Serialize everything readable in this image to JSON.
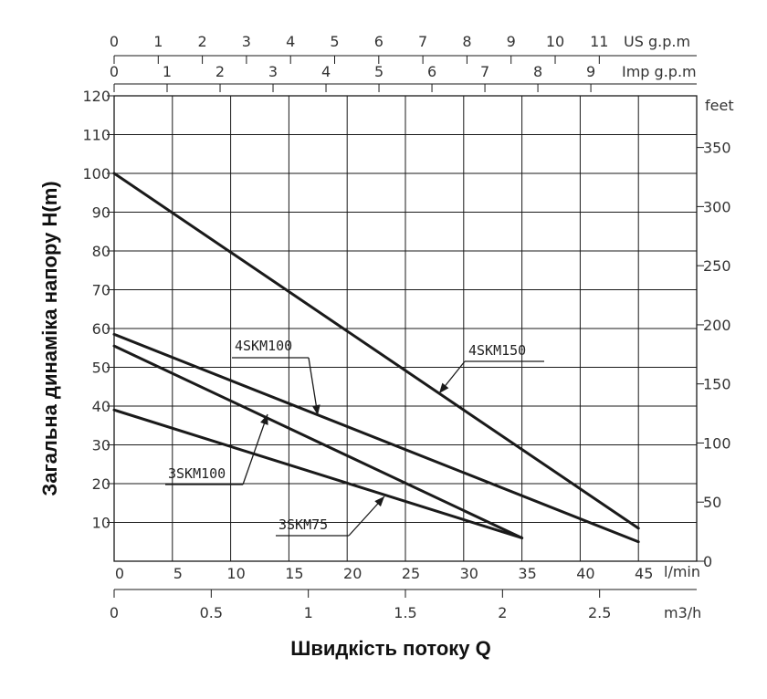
{
  "chart_data": {
    "type": "line",
    "x_label": "Швидкість потоку Q",
    "y_label": "Загальна динаміка напору H(m)",
    "x_lmin_unit": "l/min",
    "x_m3h_unit": "m3/h",
    "x_imp_unit": "Imp g.p.m",
    "x_us_unit": "US g.p.m",
    "y_feet_unit": "feet",
    "xlim_lmin": [
      0,
      50
    ],
    "ylim_m": [
      0,
      120
    ],
    "x_ticks_lmin": [
      "0",
      "5",
      "10",
      "15",
      "20",
      "25",
      "30",
      "35",
      "40",
      "45"
    ],
    "x_ticks_m3h": [
      {
        "label": "0",
        "v": 0
      },
      {
        "label": "0.5",
        "v": 0.5
      },
      {
        "label": "1",
        "v": 1
      },
      {
        "label": "1.5",
        "v": 1.5
      },
      {
        "label": "2",
        "v": 2
      },
      {
        "label": "2.5",
        "v": 2.5
      }
    ],
    "x_ticks_imp": [
      "0",
      "1",
      "2",
      "3",
      "4",
      "5",
      "6",
      "7",
      "8",
      "9"
    ],
    "x_ticks_us": [
      "0",
      "1",
      "2",
      "3",
      "4",
      "5",
      "6",
      "7",
      "8",
      "9",
      "10",
      "11"
    ],
    "y_ticks_m": [
      "10",
      "20",
      "30",
      "40",
      "50",
      "60",
      "70",
      "80",
      "90",
      "100",
      "110",
      "120"
    ],
    "y_ticks_feet": [
      "0",
      "50",
      "100",
      "150",
      "200",
      "250",
      "300",
      "350"
    ],
    "grid": true,
    "series": [
      {
        "name": "4SKM150",
        "x": [
          0,
          45
        ],
        "y": [
          100,
          8.5
        ]
      },
      {
        "name": "4SKM100",
        "x": [
          0,
          45
        ],
        "y": [
          58.5,
          5
        ]
      },
      {
        "name": "3SKM100",
        "x": [
          0,
          35
        ],
        "y": [
          55.5,
          6
        ]
      },
      {
        "name": "3SKM75",
        "x": [
          0,
          35
        ],
        "y": [
          39,
          6
        ]
      }
    ]
  }
}
